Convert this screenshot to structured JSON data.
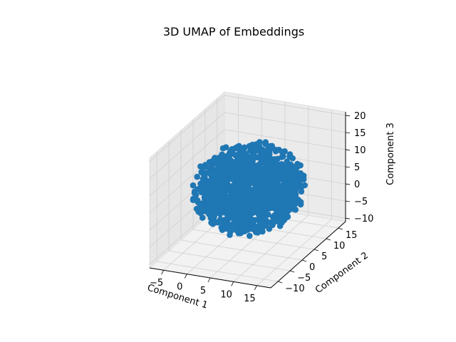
{
  "chart_data": {
    "type": "scatter",
    "projection": "3d",
    "title": "3D UMAP of Embeddings",
    "xlabel": "Component 1",
    "ylabel": "Component 2",
    "zlabel": "Component 3",
    "xticks": [
      "−5",
      "0",
      "5",
      "10",
      "15"
    ],
    "yticks": [
      "−10",
      "−5",
      "0",
      "5",
      "10",
      "15"
    ],
    "zticks": [
      "−10",
      "−5",
      "0",
      "5",
      "10",
      "15",
      "20"
    ],
    "xlim": [
      -8,
      18
    ],
    "ylim": [
      -13,
      18
    ],
    "zlim": [
      -11,
      21
    ],
    "grid": true,
    "legend": "none",
    "marker_color": "#1f77b4",
    "pane_color": "#f2f2f2",
    "grid_color": "#d0d0d0",
    "point_count_estimate": 1200,
    "cluster_center": [
      5,
      3,
      5
    ],
    "cluster_radius_estimate": 10
  }
}
